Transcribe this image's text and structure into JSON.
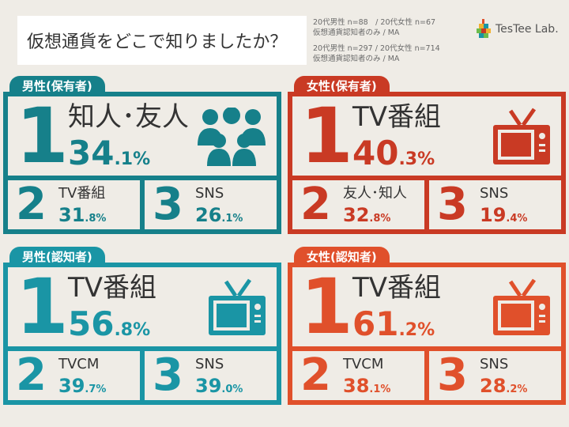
{
  "title": "仮想通貨をどこで知りましたか？",
  "samples": [
    {
      "line1": "20代男性 n=88　/ 20代女性 n=67",
      "line2": "仮想通貨認知者のみ / MA"
    },
    {
      "line1": "20代男性 n=297 / 20代女性 n=714",
      "line2": "仮想通貨認知者のみ / MA"
    }
  ],
  "logo": {
    "text": "TesTee Lab.",
    "icon": "colorful-blocks-logo-icon"
  },
  "colors": {
    "teal": "#16808a",
    "cyan": "#1a95a5",
    "red": "#c93a24",
    "orange": "#e0502b"
  },
  "chart_data": [
    {
      "type": "table",
      "title": "男性(保有者)",
      "ranks": [
        {
          "rank": "1",
          "label": "知人･友人",
          "int": "34",
          "dec": ".1%",
          "value": 34.1,
          "icon": "people-icon"
        },
        {
          "rank": "2",
          "label": "TV番組",
          "int": "31",
          "dec": ".8%",
          "value": 31.8
        },
        {
          "rank": "3",
          "label": "SNS",
          "int": "26",
          "dec": ".1%",
          "value": 26.1
        }
      ]
    },
    {
      "type": "table",
      "title": "女性(保有者)",
      "ranks": [
        {
          "rank": "1",
          "label": "TV番組",
          "int": "40",
          "dec": ".3%",
          "value": 40.3,
          "icon": "tv-icon"
        },
        {
          "rank": "2",
          "label": "友人･知人",
          "int": "32",
          "dec": ".8%",
          "value": 32.8
        },
        {
          "rank": "3",
          "label": "SNS",
          "int": "19",
          "dec": ".4%",
          "value": 19.4
        }
      ]
    },
    {
      "type": "table",
      "title": "男性(認知者)",
      "ranks": [
        {
          "rank": "1",
          "label": "TV番組",
          "int": "56",
          "dec": ".8%",
          "value": 56.8,
          "icon": "tv-icon"
        },
        {
          "rank": "2",
          "label": "TVCM",
          "int": "39",
          "dec": ".7%",
          "value": 39.7
        },
        {
          "rank": "3",
          "label": "SNS",
          "int": "39",
          "dec": ".0%",
          "value": 39.0
        }
      ]
    },
    {
      "type": "table",
      "title": "女性(認知者)",
      "ranks": [
        {
          "rank": "1",
          "label": "TV番組",
          "int": "61",
          "dec": ".2%",
          "value": 61.2,
          "icon": "tv-icon"
        },
        {
          "rank": "2",
          "label": "TVCM",
          "int": "38",
          "dec": ".1%",
          "value": 38.1
        },
        {
          "rank": "3",
          "label": "SNS",
          "int": "28",
          "dec": ".2%",
          "value": 28.2
        }
      ]
    }
  ]
}
